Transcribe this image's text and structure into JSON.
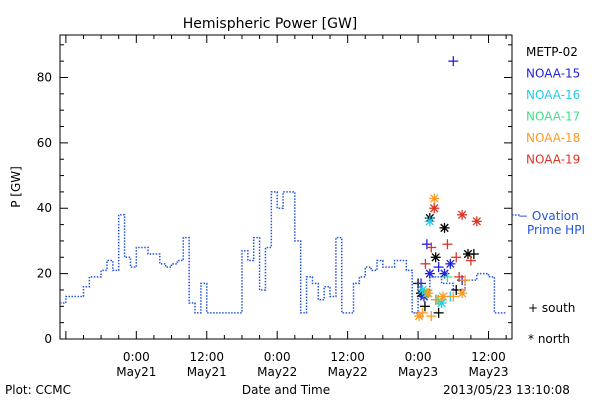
{
  "chart_data": {
    "type": "scatter",
    "title": "Hemispheric Power [GW]",
    "xlabel": "Date and Time",
    "ylabel": "P [GW]",
    "ylim": [
      0,
      93
    ],
    "xlim": [
      "2013-05-20 11:00",
      "2013-05-23 16:00"
    ],
    "yticks": [
      0,
      20,
      40,
      60,
      80
    ],
    "xticks": [
      {
        "time": "2013-05-21 00:00",
        "line1": "0:00",
        "line2": "May21"
      },
      {
        "time": "2013-05-21 12:00",
        "line1": "12:00",
        "line2": "May21"
      },
      {
        "time": "2013-05-22 00:00",
        "line1": "0:00",
        "line2": "May22"
      },
      {
        "time": "2013-05-22 12:00",
        "line1": "12:00",
        "line2": "May22"
      },
      {
        "time": "2013-05-23 00:00",
        "line1": "0:00",
        "line2": "May23"
      },
      {
        "time": "2013-05-23 12:00",
        "line1": "12:00",
        "line2": "May23"
      }
    ],
    "legend_position": "right",
    "symbol_legend": {
      "south": "+ south",
      "north": "* north"
    },
    "ovation_series": {
      "name": "Ovation Prime HPI",
      "label_line1": "− Ovation",
      "label_line2": "Prime HPI",
      "color": "#2255dd",
      "style": "dotted",
      "points": [
        [
          "2013-05-20 11:00",
          11
        ],
        [
          "2013-05-20 12:00",
          13
        ],
        [
          "2013-05-20 14:00",
          13
        ],
        [
          "2013-05-20 15:00",
          16
        ],
        [
          "2013-05-20 16:00",
          19
        ],
        [
          "2013-05-20 18:00",
          21
        ],
        [
          "2013-05-20 19:00",
          24
        ],
        [
          "2013-05-20 20:00",
          21
        ],
        [
          "2013-05-20 21:00",
          38
        ],
        [
          "2013-05-20 22:00",
          25
        ],
        [
          "2013-05-20 23:00",
          22
        ],
        [
          "2013-05-21 00:00",
          28
        ],
        [
          "2013-05-21 02:00",
          26
        ],
        [
          "2013-05-21 04:00",
          23
        ],
        [
          "2013-05-21 05:00",
          22
        ],
        [
          "2013-05-21 06:00",
          23
        ],
        [
          "2013-05-21 07:00",
          24
        ],
        [
          "2013-05-21 08:00",
          31
        ],
        [
          "2013-05-21 09:00",
          11
        ],
        [
          "2013-05-21 10:00",
          8
        ],
        [
          "2013-05-21 11:00",
          17
        ],
        [
          "2013-05-21 12:00",
          8
        ],
        [
          "2013-05-21 17:00",
          8
        ],
        [
          "2013-05-21 18:00",
          27
        ],
        [
          "2013-05-21 19:00",
          24
        ],
        [
          "2013-05-21 20:00",
          31
        ],
        [
          "2013-05-21 21:00",
          15
        ],
        [
          "2013-05-21 22:00",
          28
        ],
        [
          "2013-05-21 23:00",
          45
        ],
        [
          "2013-05-22 00:00",
          40
        ],
        [
          "2013-05-22 01:00",
          45
        ],
        [
          "2013-05-22 03:00",
          30
        ],
        [
          "2013-05-22 04:00",
          8
        ],
        [
          "2013-05-22 05:00",
          19
        ],
        [
          "2013-05-22 06:00",
          17
        ],
        [
          "2013-05-22 07:00",
          12
        ],
        [
          "2013-05-22 08:00",
          16
        ],
        [
          "2013-05-22 09:00",
          13
        ],
        [
          "2013-05-22 10:00",
          31
        ],
        [
          "2013-05-22 11:00",
          8
        ],
        [
          "2013-05-22 13:00",
          17
        ],
        [
          "2013-05-22 14:00",
          19
        ],
        [
          "2013-05-22 15:00",
          22
        ],
        [
          "2013-05-22 16:00",
          21
        ],
        [
          "2013-05-22 17:00",
          24
        ],
        [
          "2013-05-22 18:00",
          22
        ],
        [
          "2013-05-22 20:00",
          24
        ],
        [
          "2013-05-22 22:00",
          21
        ],
        [
          "2013-05-22 23:00",
          8
        ],
        [
          "2013-05-23 00:00",
          15
        ],
        [
          "2013-05-23 02:00",
          19
        ],
        [
          "2013-05-23 04:00",
          17
        ],
        [
          "2013-05-23 06:00",
          15
        ],
        [
          "2013-05-23 08:00",
          18
        ],
        [
          "2013-05-23 10:00",
          20
        ],
        [
          "2013-05-23 12:00",
          19
        ],
        [
          "2013-05-23 13:00",
          8
        ],
        [
          "2013-05-23 15:00",
          8
        ]
      ]
    },
    "series": [
      {
        "name": "METP-02",
        "color": "#000000",
        "points": [
          [
            "2013-05-23 00:00",
            17,
            "+"
          ],
          [
            "2013-05-23 00:30",
            14,
            "*"
          ],
          [
            "2013-05-23 01:10",
            10,
            "+"
          ],
          [
            "2013-05-23 02:00",
            37,
            "*"
          ],
          [
            "2013-05-23 03:00",
            25,
            "*"
          ],
          [
            "2013-05-23 03:30",
            8,
            "+"
          ],
          [
            "2013-05-23 04:30",
            34,
            "*"
          ],
          [
            "2013-05-23 06:30",
            15,
            "+"
          ],
          [
            "2013-05-23 08:30",
            26,
            "*"
          ],
          [
            "2013-05-23 09:30",
            26,
            "+"
          ]
        ]
      },
      {
        "name": "NOAA-15",
        "color": "#2222dd",
        "points": [
          [
            "2013-05-23 00:30",
            17,
            "+"
          ],
          [
            "2013-05-23 01:00",
            13,
            "*"
          ],
          [
            "2013-05-23 01:30",
            29,
            "+"
          ],
          [
            "2013-05-23 02:00",
            20,
            "*"
          ],
          [
            "2013-05-23 03:30",
            22,
            "+"
          ],
          [
            "2013-05-23 04:30",
            20,
            "*"
          ],
          [
            "2013-05-23 05:30",
            23,
            "*"
          ],
          [
            "2013-05-23 06:00",
            85,
            "+"
          ],
          [
            "2013-05-23 07:30",
            18,
            "+"
          ]
        ]
      },
      {
        "name": "NOAA-16",
        "color": "#22ccee",
        "points": [
          [
            "2013-05-23 00:45",
            15,
            "*"
          ],
          [
            "2013-05-23 02:00",
            36,
            "*"
          ],
          [
            "2013-05-23 03:00",
            12,
            "+"
          ],
          [
            "2013-05-23 04:00",
            11,
            "*"
          ],
          [
            "2013-05-23 05:30",
            13,
            "+"
          ]
        ]
      },
      {
        "name": "NOAA-17",
        "color": "#44dd88",
        "points": [
          [
            "2013-05-23 01:30",
            14,
            "*"
          ],
          [
            "2013-05-23 03:30",
            12,
            "+"
          ],
          [
            "2013-05-23 05:00",
            19,
            "+"
          ]
        ]
      },
      {
        "name": "NOAA-18",
        "color": "#ff9922",
        "points": [
          [
            "2013-05-23 00:10",
            7,
            "*"
          ],
          [
            "2013-05-23 00:45",
            8,
            "+"
          ],
          [
            "2013-05-23 01:45",
            14,
            "*"
          ],
          [
            "2013-05-23 02:45",
            43,
            "*"
          ],
          [
            "2013-05-23 03:15",
            12,
            "+"
          ],
          [
            "2013-05-23 04:15",
            13,
            "*"
          ],
          [
            "2013-05-23 06:00",
            13,
            "+"
          ],
          [
            "2013-05-23 07:30",
            14,
            "*"
          ],
          [
            "2013-05-23 08:00",
            18,
            "+"
          ],
          [
            "2013-05-23 02:15",
            7,
            "+"
          ]
        ]
      },
      {
        "name": "NOAA-19",
        "color": "#dd3322",
        "points": [
          [
            "2013-05-23 01:15",
            23,
            "+"
          ],
          [
            "2013-05-23 02:15",
            28,
            "+"
          ],
          [
            "2013-05-23 02:45",
            40,
            "*"
          ],
          [
            "2013-05-23 05:00",
            29,
            "+"
          ],
          [
            "2013-05-23 06:30",
            25,
            "+"
          ],
          [
            "2013-05-23 07:30",
            38,
            "*"
          ],
          [
            "2013-05-23 07:00",
            19,
            "+"
          ],
          [
            "2013-05-23 09:00",
            24,
            "+"
          ],
          [
            "2013-05-23 10:00",
            36,
            "*"
          ]
        ]
      }
    ]
  },
  "footer": {
    "plot_credit": "Plot: CCMC",
    "timestamp": "2013/05/23 13:10:08"
  }
}
